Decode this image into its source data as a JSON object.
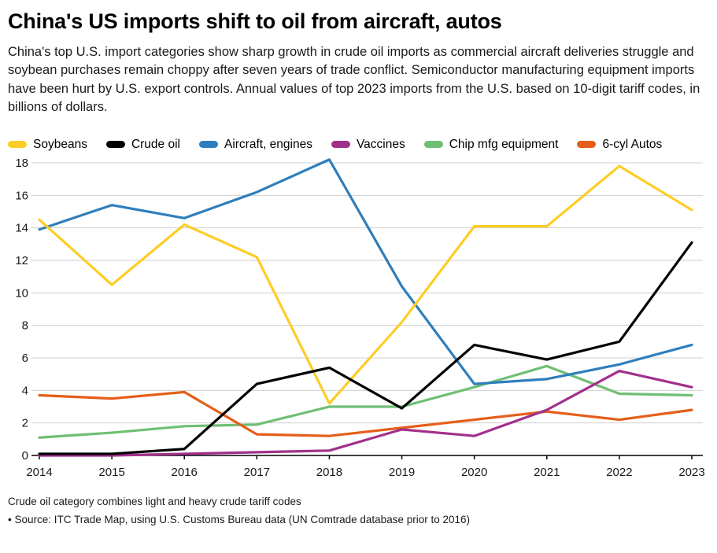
{
  "header": {
    "title": "China's US imports shift to oil from aircraft, autos",
    "subtitle": "China's top U.S. import categories show sharp growth in crude oil imports as commercial aircraft deliveries struggle and soybean purchases remain choppy after seven years of trade conflict. Semiconductor manufacturing equipment imports have been hurt by U.S. export controls. Annual values of top 2023 imports from the U.S. based on 10-digit tariff codes, in billions of dollars."
  },
  "chart_data": {
    "type": "line",
    "x": [
      2014,
      2015,
      2016,
      2017,
      2018,
      2019,
      2020,
      2021,
      2022,
      2023
    ],
    "series": [
      {
        "name": "Soybeans",
        "color": "#fdcd27",
        "values": [
          14.5,
          10.5,
          14.2,
          12.2,
          3.2,
          8.2,
          14.1,
          14.1,
          17.8,
          15.1
        ]
      },
      {
        "name": "Crude oil",
        "color": "#000000",
        "values": [
          0.1,
          0.1,
          0.4,
          4.4,
          5.4,
          2.9,
          6.8,
          5.9,
          7.0,
          13.1
        ]
      },
      {
        "name": "Aircraft, engines",
        "color": "#2f7ebc",
        "values": [
          13.9,
          15.4,
          14.6,
          16.2,
          18.2,
          10.4,
          4.4,
          4.7,
          5.6,
          6.8
        ]
      },
      {
        "name": "Vaccines",
        "color": "#a1308b",
        "values": [
          0.0,
          0.0,
          0.1,
          0.2,
          0.3,
          1.6,
          1.2,
          2.8,
          5.2,
          4.2
        ]
      },
      {
        "name": "Chip mfg equipment",
        "color": "#6fbf73",
        "values": [
          1.1,
          1.4,
          1.8,
          1.9,
          3.0,
          3.0,
          4.2,
          5.5,
          3.8,
          3.7
        ]
      },
      {
        "name": "6-cyl Autos",
        "color": "#e55e19",
        "values": [
          3.7,
          3.5,
          3.9,
          1.3,
          1.2,
          1.7,
          2.2,
          2.7,
          2.2,
          2.8
        ]
      }
    ],
    "ylim": [
      0,
      18
    ],
    "ytick_step": 2,
    "grid": true,
    "legend_position": "top",
    "grid_color": "#cfcfcf",
    "axis_color": "#000000",
    "tick_label_color": "#1a1a1a"
  },
  "footer": {
    "note": "Crude oil category combines light and heavy crude tariff codes",
    "source": "• Source: ITC Trade Map, using U.S. Customs Bureau data (UN Comtrade database prior to 2016)"
  }
}
